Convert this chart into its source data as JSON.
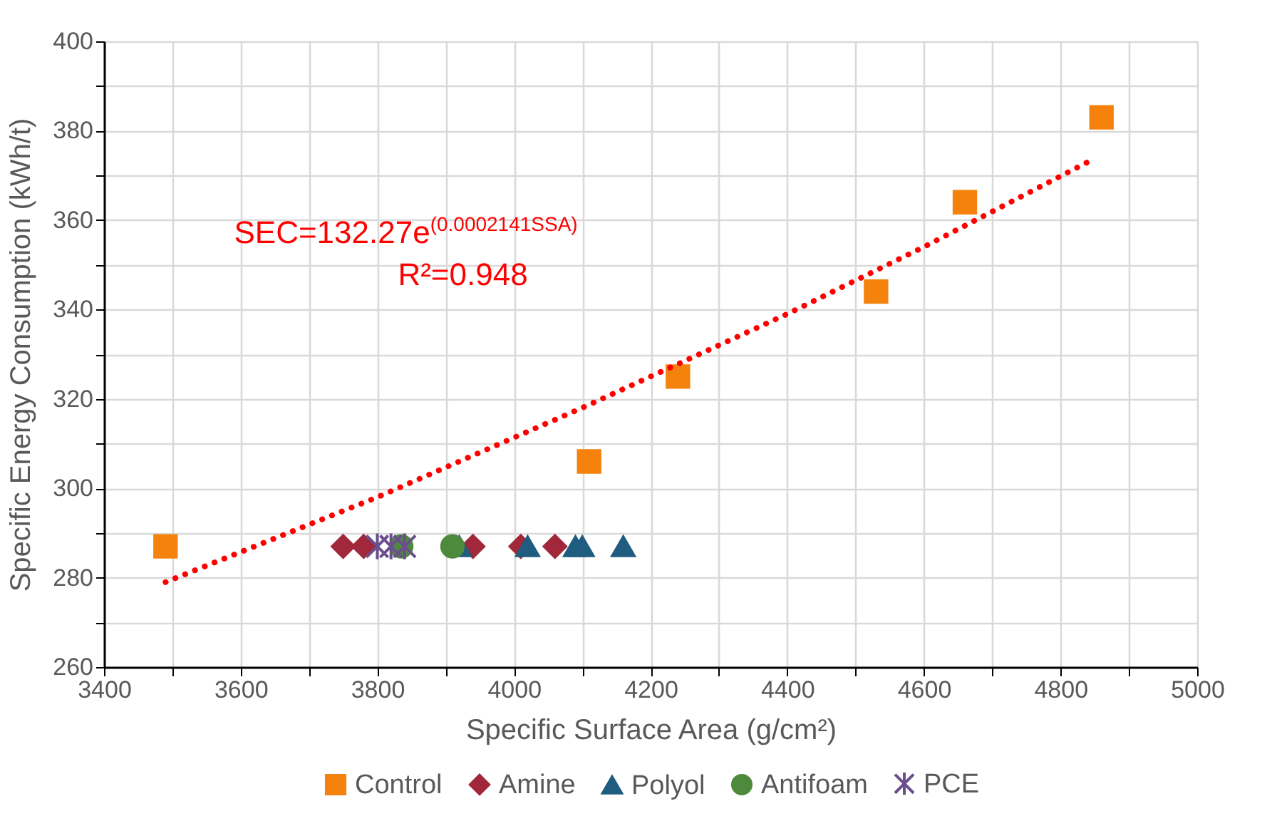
{
  "chart_data": {
    "type": "scatter",
    "xlabel": "Specific Surface Area (g/cm²)",
    "ylabel": "Specific Energy Consumption (kWh/t)",
    "xlim": [
      3400,
      5000
    ],
    "ylim": [
      260,
      400
    ],
    "xticks": [
      3400,
      {
        "value": 3500,
        "label": null
      },
      3600,
      {
        "value": 3700,
        "label": null
      },
      3800,
      {
        "value": 3900,
        "label": null
      },
      4000,
      {
        "value": 4100,
        "label": null
      },
      4200,
      {
        "value": 4300,
        "label": null
      },
      4400,
      {
        "value": 4500,
        "label": null
      },
      4600,
      {
        "value": 4700,
        "label": null
      },
      4800,
      {
        "value": 4900,
        "label": null
      },
      5000
    ],
    "yticks": [
      260,
      {
        "value": 270,
        "label": null
      },
      280,
      {
        "value": 290,
        "label": null
      },
      300,
      {
        "value": 310,
        "label": null
      },
      320,
      {
        "value": 330,
        "label": null
      },
      340,
      {
        "value": 350,
        "label": null
      },
      360,
      {
        "value": 370,
        "label": null
      },
      380,
      {
        "value": 390,
        "label": null
      },
      400
    ],
    "grid": true,
    "legend": "bottom",
    "annotations": [
      "SEC=132.27e$^{(0.0002141SSA)}$",
      "R²=0.948"
    ],
    "series": [
      {
        "name": "Control",
        "color": "#f4820d",
        "marker": "square",
        "x": [
          3490,
          4110,
          4240,
          4530,
          4660,
          4860
        ],
        "values": [
          287,
          306,
          325,
          344,
          364,
          383
        ]
      },
      {
        "name": "Amine",
        "color": "#a0283a",
        "marker": "diamond",
        "x": [
          3750,
          3780,
          3940,
          4010,
          4060
        ],
        "values": [
          287,
          287,
          287,
          287,
          287
        ]
      },
      {
        "name": "Polyol",
        "color": "#1f5c7f",
        "marker": "triangle",
        "x": [
          3920,
          4020,
          4090,
          4100,
          4160
        ],
        "values": [
          287,
          287,
          287,
          287,
          287
        ]
      },
      {
        "name": "Antifoam",
        "color": "#4e8a3c",
        "marker": "circle",
        "x": [
          3835,
          3910
        ],
        "values": [
          287,
          287
        ]
      },
      {
        "name": "PCE",
        "color": "#6a4f8c",
        "marker": "cross",
        "x": [
          3800,
          3820,
          3840
        ],
        "values": [
          287,
          287,
          287
        ]
      },
      {
        "type": "line",
        "color": "#ff0000",
        "line_style": "dotted",
        "marker": "none",
        "x": [
          3490,
          3800,
          4100,
          4400,
          4600,
          4840
        ],
        "values": [
          279,
          298,
          318,
          339,
          354,
          373
        ]
      }
    ]
  }
}
